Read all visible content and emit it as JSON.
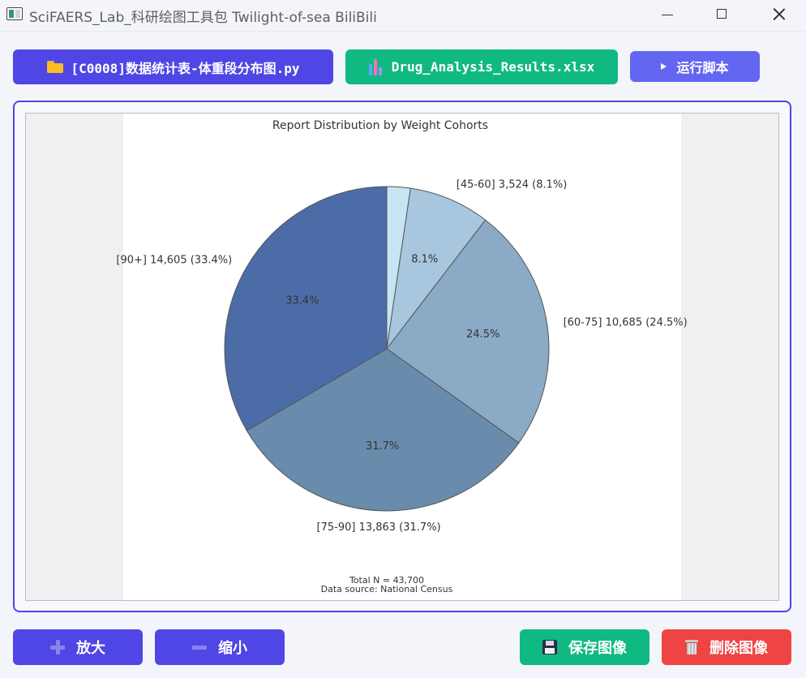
{
  "window": {
    "title": "SciFAERS_Lab_科研绘图工具包 Twilight-of-sea BiliBili"
  },
  "toolbar": {
    "script_label": "[C0008]数据统计表-体重段分布图.py",
    "excel_label": "Drug_Analysis_Results.xlsx",
    "run_label": "运行脚本"
  },
  "actions": {
    "zoom_in": "放大",
    "zoom_out": "缩小",
    "save": "保存图像",
    "delete": "删除图像"
  },
  "chart_data": {
    "type": "pie",
    "title": "Report Distribution by Weight Cohorts",
    "start_angle_deg": 90,
    "direction": "clockwise",
    "slices": [
      {
        "label": "",
        "value": 1023,
        "percent_label": "",
        "outer_label": "",
        "color": "#c6e4f4"
      },
      {
        "label": "[45-60]",
        "value": 3524,
        "percent_label": "8.1%",
        "outer_label": "[45-60] 3,524 (8.1%)",
        "color": "#a8c6de"
      },
      {
        "label": "[60-75]",
        "value": 10685,
        "percent_label": "24.5%",
        "outer_label": "[60-75] 10,685 (24.5%)",
        "color": "#8aaac6"
      },
      {
        "label": "[75-90]",
        "value": 13863,
        "percent_label": "31.7%",
        "outer_label": "[75-90] 13,863 (31.7%)",
        "color": "#6a8cac"
      },
      {
        "label": "[90+]",
        "value": 14605,
        "percent_label": "33.4%",
        "outer_label": "[90+] 14,605 (33.4%)",
        "color": "#4c6ca8"
      }
    ],
    "footer": [
      "Total N = 43,700",
      "Data source: National Census"
    ]
  }
}
